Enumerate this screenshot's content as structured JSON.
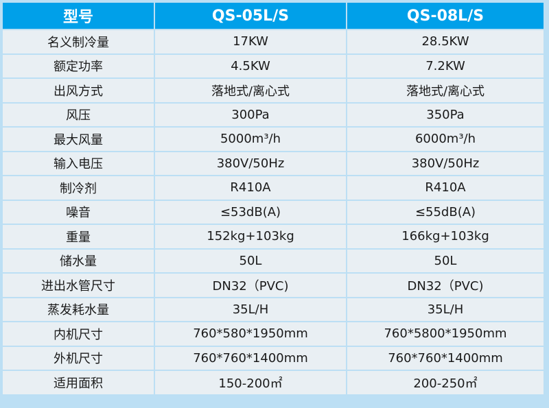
{
  "header": {
    "col_param": "型号",
    "model_a": "QS-05L/S",
    "model_b": "QS-08L/S"
  },
  "rows": [
    {
      "label": "名义制冷量",
      "a": "17KW",
      "b": "28.5KW"
    },
    {
      "label": "额定功率",
      "a": "4.5KW",
      "b": "7.2KW"
    },
    {
      "label": "出风方式",
      "a": "落地式/离心式",
      "b": "落地式/离心式"
    },
    {
      "label": "风压",
      "a": "300Pa",
      "b": "350Pa"
    },
    {
      "label": "最大风量",
      "a": "5000m³/h",
      "b": "6000m³/h"
    },
    {
      "label": "输入电压",
      "a": "380V/50Hz",
      "b": "380V/50Hz"
    },
    {
      "label": "制冷剂",
      "a": "R410A",
      "b": "R410A"
    },
    {
      "label": "噪音",
      "a": "≤53dB(A)",
      "b": "≤55dB(A)"
    },
    {
      "label": "重量",
      "a": "152kg+103kg",
      "b": "166kg+103kg"
    },
    {
      "label": "储水量",
      "a": "50L",
      "b": "50L"
    },
    {
      "label": "进出水管尺寸",
      "a": "DN32（PVC)",
      "b": "DN32（PVC)"
    },
    {
      "label": "蒸发耗水量",
      "a": "35L/H",
      "b": "35L/H"
    },
    {
      "label": "内机尺寸",
      "a": "760*580*1950mm",
      "b": "760*5800*1950mm"
    },
    {
      "label": "外机尺寸",
      "a": "760*760*1400mm",
      "b": "760*760*1400mm"
    },
    {
      "label": "适用面积",
      "a": "150-200㎡",
      "b": "200-250㎡"
    }
  ],
  "colors": {
    "header_bg": "#00a0e9",
    "header_text": "#ffffff",
    "cell_bg": "#e9eff3",
    "border": "#bcdff4"
  }
}
